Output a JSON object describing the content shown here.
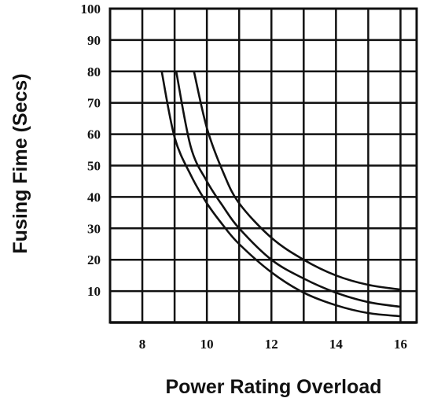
{
  "chart_data": {
    "type": "line",
    "xlabel": "Power Rating Overload",
    "ylabel": "Fusing Fime (Secs)",
    "xlim": [
      7,
      16.5
    ],
    "ylim": [
      0,
      100
    ],
    "x_ticks": [
      8,
      10,
      12,
      14,
      16
    ],
    "y_ticks": [
      10,
      20,
      30,
      40,
      50,
      60,
      70,
      80,
      90,
      100
    ],
    "x_tick_labels": [
      "8",
      "10",
      "12",
      "14",
      "16"
    ],
    "y_tick_labels": [
      "10",
      "20",
      "30",
      "40",
      "50",
      "60",
      "70",
      "80",
      "90",
      "100"
    ],
    "grid": true,
    "series": [
      {
        "x": [
          8.6,
          9.0,
          9.5,
          10.0,
          10.5,
          11.0,
          12.0,
          13.0,
          14.0,
          15.0,
          16.0
        ],
        "y": [
          80,
          59,
          47,
          38,
          31,
          25,
          16,
          9.5,
          5.5,
          3,
          2
        ]
      },
      {
        "x": [
          9.05,
          9.5,
          10.0,
          10.5,
          11.0,
          12.0,
          13.0,
          14.0,
          15.0,
          16.0
        ],
        "y": [
          80,
          56,
          45,
          37,
          30,
          20,
          14,
          9.5,
          6.5,
          5
        ]
      },
      {
        "x": [
          9.6,
          10.0,
          10.5,
          11.0,
          12.0,
          13.0,
          14.0,
          15.0,
          16.0
        ],
        "y": [
          80,
          62,
          48,
          38,
          27,
          20,
          15,
          12,
          10.5
        ]
      }
    ]
  }
}
